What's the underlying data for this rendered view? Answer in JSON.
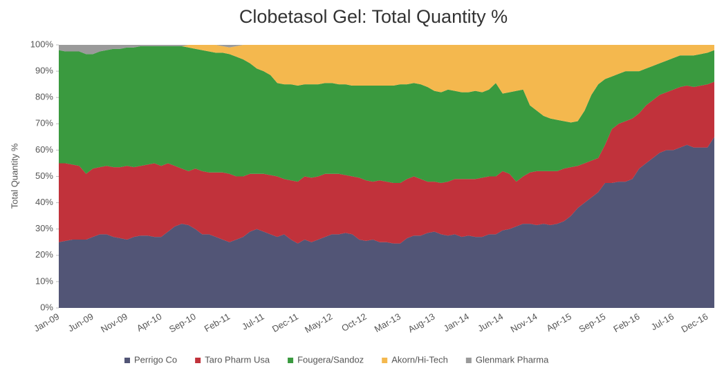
{
  "chart_data": {
    "type": "stacked_area",
    "title": "Clobetasol Gel: Total Quantity %",
    "y_label": "Total Quantity %",
    "categories": [
      "Jan-09",
      null,
      null,
      null,
      null,
      "Jun-09",
      null,
      null,
      null,
      null,
      "Nov-09",
      null,
      null,
      null,
      null,
      "Apr-10",
      null,
      null,
      null,
      null,
      "Sep-10",
      null,
      null,
      null,
      null,
      "Feb-11",
      null,
      null,
      null,
      null,
      "Jul-11",
      null,
      null,
      null,
      null,
      "Dec-11",
      null,
      null,
      null,
      null,
      "May-12",
      null,
      null,
      null,
      null,
      "Oct-12",
      null,
      null,
      null,
      null,
      "Mar-13",
      null,
      null,
      null,
      null,
      "Aug-13",
      null,
      null,
      null,
      null,
      "Jan-14",
      null,
      null,
      null,
      null,
      "Jun-14",
      null,
      null,
      null,
      null,
      "Nov-14",
      null,
      null,
      null,
      null,
      "Apr-15",
      null,
      null,
      null,
      null,
      "Sep-15",
      null,
      null,
      null,
      null,
      "Feb-16",
      null,
      null,
      null,
      null,
      "Jul-16",
      null,
      null,
      null,
      null,
      "Dec-16",
      null
    ],
    "series": [
      {
        "name": "Perrigo Co",
        "color": "#525576",
        "values": [
          25,
          25.5,
          26,
          26,
          26,
          27,
          28,
          28,
          27,
          26.5,
          26,
          27,
          27.5,
          27.5,
          27,
          27,
          29,
          31,
          32,
          31.5,
          30,
          28,
          28,
          27,
          26,
          25,
          26,
          27,
          29,
          30,
          29,
          28,
          27,
          28,
          26,
          24.5,
          26,
          25,
          26,
          27,
          28,
          28,
          28.5,
          28,
          26,
          25.5,
          26,
          25,
          25,
          24.5,
          24.5,
          26.5,
          27.5,
          27.5,
          28.5,
          29,
          28,
          27.5,
          28,
          27,
          27.5,
          27,
          27,
          28,
          28,
          29.5,
          30,
          31,
          32,
          32,
          31.5,
          32,
          31.5,
          32,
          33,
          35,
          38,
          40,
          42,
          44,
          47.5,
          47.5,
          48,
          48,
          49,
          53,
          55,
          57,
          59,
          60,
          60,
          61,
          62,
          61,
          61,
          61,
          65
        ]
      },
      {
        "name": "Taro Pharm Usa",
        "color": "#c1323b",
        "values": [
          30,
          29.5,
          28.5,
          28,
          25,
          26,
          25.5,
          26,
          26.5,
          27,
          28,
          26.5,
          26.5,
          27,
          28,
          27,
          26,
          23,
          21,
          20.5,
          23,
          24,
          23.5,
          24.5,
          25.5,
          26,
          24,
          23,
          22,
          21,
          22,
          22.5,
          23,
          21,
          22.5,
          23.5,
          24,
          24.5,
          24,
          24,
          23,
          23,
          22,
          22,
          23.5,
          23,
          22,
          23.5,
          23,
          23,
          23,
          22.5,
          22.5,
          21.5,
          19.5,
          19,
          19.5,
          20.5,
          21,
          22,
          21.5,
          22,
          22.5,
          22,
          22,
          22.5,
          21,
          17,
          18,
          19.5,
          20.5,
          20,
          20.5,
          20,
          20,
          18.5,
          16,
          15,
          14,
          13,
          14.5,
          20.5,
          22,
          23,
          23,
          21,
          22,
          22,
          22,
          22,
          23,
          23,
          22.5,
          23,
          23.5,
          24,
          21
        ]
      },
      {
        "name": "Fougera/Sandoz",
        "color": "#3a9a3f",
        "values": [
          43,
          42.5,
          43,
          43.5,
          45.5,
          43.5,
          44,
          44,
          45,
          45,
          45,
          45.5,
          45.5,
          45,
          44.5,
          45.5,
          44.5,
          45.5,
          46.5,
          47,
          45.5,
          46,
          46,
          45.5,
          45.5,
          45.5,
          45.5,
          44.5,
          42,
          40,
          39,
          38,
          35.5,
          36,
          36.5,
          36.5,
          35,
          35.5,
          35,
          34.5,
          34.5,
          34,
          34.5,
          34.5,
          35,
          36,
          36.5,
          36,
          36.5,
          37,
          37.5,
          36,
          35.5,
          36,
          36,
          34.5,
          34.5,
          35,
          33.5,
          33,
          33,
          33.5,
          32.5,
          33,
          35.5,
          29.5,
          31,
          34.5,
          33,
          25.5,
          23,
          21,
          20,
          19.5,
          18,
          17,
          17,
          20,
          25,
          28,
          25,
          20,
          19,
          19,
          18,
          16,
          14,
          13,
          12,
          12,
          12,
          12,
          11.5,
          12,
          12,
          12,
          12
        ]
      },
      {
        "name": "Akorn/Hi-Tech",
        "color": "#f4b84e",
        "values": [
          0,
          0,
          0,
          0,
          0,
          0,
          0,
          0,
          0,
          0,
          0,
          0,
          0,
          0,
          0,
          0,
          0,
          0,
          0,
          1,
          1.5,
          2,
          2.5,
          3,
          2.5,
          2.5,
          4,
          5.5,
          7,
          9,
          10,
          11.5,
          14.5,
          15,
          15,
          15.5,
          15,
          15,
          15,
          14.5,
          14.5,
          15,
          15,
          15.5,
          15.5,
          15.5,
          15.5,
          15.5,
          15.5,
          15.5,
          15,
          15,
          14.5,
          15,
          16,
          17.5,
          18,
          17,
          17.5,
          18,
          18,
          17.5,
          18,
          17,
          14.5,
          18.5,
          18,
          17.5,
          17,
          23,
          25,
          27,
          28,
          28.5,
          29,
          29.5,
          29,
          25,
          19,
          15,
          13,
          12,
          11,
          10,
          10,
          10,
          9,
          8,
          7,
          6,
          5,
          4,
          4,
          4,
          3.5,
          3,
          2
        ]
      },
      {
        "name": "Glenmark Pharma",
        "color": "#9a9a9a",
        "values": [
          2,
          2.5,
          2.5,
          2.5,
          3.5,
          3.5,
          2.5,
          2,
          1.5,
          1.5,
          1,
          1,
          0.5,
          0.5,
          0.5,
          0.5,
          0.5,
          0.5,
          0.5,
          0,
          0,
          0,
          0,
          0,
          0.5,
          1,
          0.5,
          0,
          0,
          0,
          0,
          0,
          0,
          0,
          0,
          0,
          0,
          0,
          0,
          0,
          0,
          0,
          0,
          0,
          0,
          0,
          0,
          0,
          0,
          0,
          0,
          0,
          0,
          0,
          0,
          0,
          0,
          0,
          0,
          0,
          0,
          0,
          0,
          0,
          0,
          0,
          0,
          0,
          0,
          0,
          0,
          0,
          0,
          0,
          0,
          0,
          0,
          0,
          0,
          0,
          0,
          0,
          0,
          0,
          0,
          0,
          0,
          0,
          0,
          0,
          0,
          0,
          0,
          0,
          0,
          0,
          0
        ]
      }
    ],
    "ylim": [
      0,
      100
    ],
    "yticks": [
      {
        "value": 0,
        "label": "0%"
      },
      {
        "value": 10,
        "label": "10%"
      },
      {
        "value": 20,
        "label": "20%"
      },
      {
        "value": 30,
        "label": "30%"
      },
      {
        "value": 40,
        "label": "40%"
      },
      {
        "value": 50,
        "label": "50%"
      },
      {
        "value": 60,
        "label": "60%"
      },
      {
        "value": 70,
        "label": "70%"
      },
      {
        "value": 80,
        "label": "80%"
      },
      {
        "value": 90,
        "label": "90%"
      },
      {
        "value": 100,
        "label": "100%"
      }
    ],
    "legend": "bottom"
  }
}
